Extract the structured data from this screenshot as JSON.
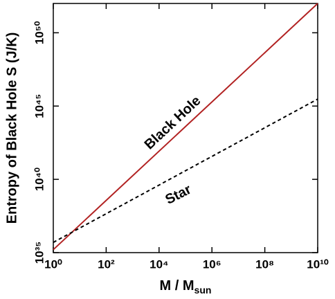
{
  "chart_data": {
    "type": "line",
    "xlabel": {
      "text": "M / M",
      "subscript": "sun"
    },
    "ylabel": "Entropy of Black Hole S (J/K)",
    "x": [
      1,
      10000000000
    ],
    "series": [
      {
        "name": "Black Hole",
        "color": "#b22222",
        "dash": false,
        "values": [
          1.6e+35,
          1e+52
        ]
      },
      {
        "name": "Star",
        "color": "#000000",
        "dash": true,
        "values": [
          5e+35,
          3e+45
        ]
      }
    ],
    "xscale": "log",
    "yscale": "log",
    "xlim": [
      1,
      10000000000
    ],
    "ylim": [
      1e+35,
      1e+52
    ],
    "xticks": [
      {
        "value": 1,
        "label": "10⁰"
      },
      {
        "value": 100,
        "label": "10²"
      },
      {
        "value": 10000,
        "label": "10⁴"
      },
      {
        "value": 1000000,
        "label": "10⁶"
      },
      {
        "value": 100000000,
        "label": "10⁸"
      },
      {
        "value": 10000000000,
        "label": "10¹⁰"
      }
    ],
    "yticks": [
      {
        "value": 1e+35,
        "label": "10³⁵"
      },
      {
        "value": 1e+40,
        "label": "10⁴⁰"
      },
      {
        "value": 1e+45,
        "label": "10⁴⁵"
      },
      {
        "value": 1e+50,
        "label": "10⁵⁰"
      }
    ],
    "grid": false
  }
}
